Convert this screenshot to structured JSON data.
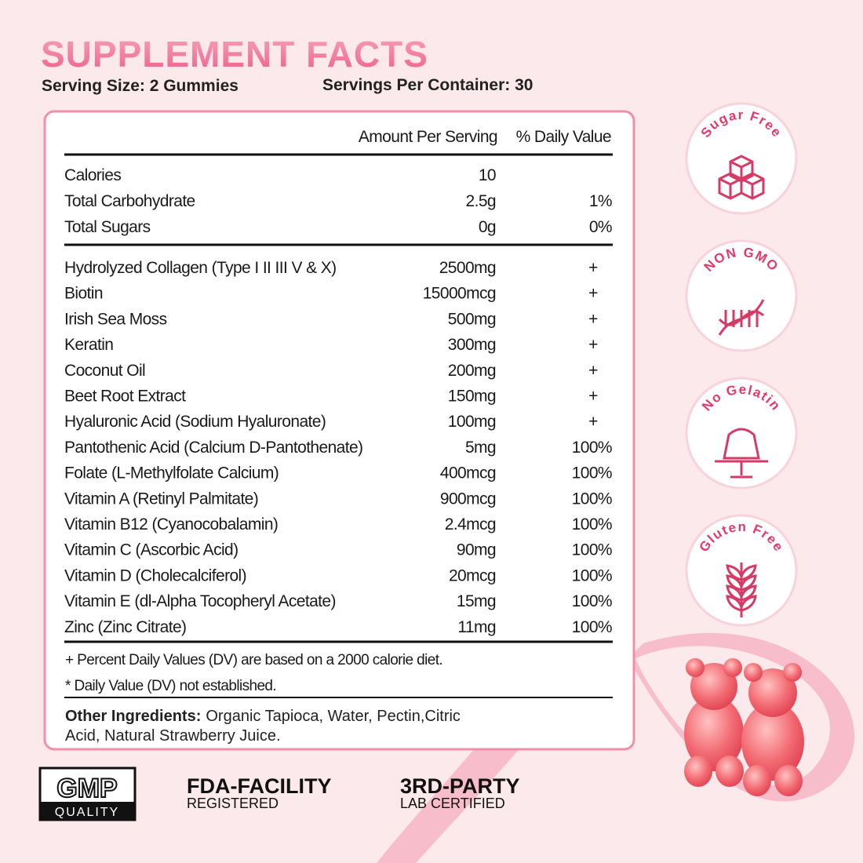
{
  "header": {
    "title": "SUPPLEMENT FACTS",
    "serving_size": "Serving Size: 2 Gummies",
    "servings_per_container": "Servings Per Container: 30"
  },
  "table": {
    "columns": [
      "Amount Per Serving",
      "% Daily Value"
    ],
    "macros": [
      [
        "Calories",
        "10",
        null
      ],
      [
        "Total Carbohydrate",
        "2.5g",
        "1%"
      ],
      [
        "Total Sugars",
        "0g",
        "0%"
      ]
    ],
    "ingredients": [
      [
        "Hydrolyzed Collagen (Type I II III V & X)",
        "2500mg",
        "+"
      ],
      [
        "Biotin",
        "15000mcg",
        "+"
      ],
      [
        "Irish Sea Moss",
        "500mg",
        "+"
      ],
      [
        "Keratin",
        "300mg",
        "+"
      ],
      [
        "Coconut Oil",
        "200mg",
        "+"
      ],
      [
        "Beet Root Extract",
        "150mg",
        "+"
      ],
      [
        "Hyaluronic Acid (Sodium Hyaluronate)",
        "100mg",
        "+"
      ],
      [
        "Pantothenic Acid (Calcium D-Pantothenate)",
        "5mg",
        "100%"
      ],
      [
        "Folate (L-Methylfolate Calcium)",
        "400mcg",
        "100%"
      ],
      [
        "Vitamin A (Retinyl Palmitate)",
        "900mcg",
        "100%"
      ],
      [
        "Vitamin B12 (Cyanocobalamin)",
        "2.4mcg",
        "100%"
      ],
      [
        "Vitamin C  (Ascorbic Acid)",
        "90mg",
        "100%"
      ],
      [
        "Vitamin D (Cholecalciferol)",
        "20mcg",
        "100%"
      ],
      [
        "Vitamin E (dl-Alpha Tocopheryl Acetate)",
        "15mg",
        "100%"
      ],
      [
        "Zinc (Zinc Citrate)",
        "11mg",
        "100%"
      ]
    ],
    "notes": [
      "+ Percent Daily Values (DV) are based on a  2000 calorie diet.",
      "* Daily Value (DV) not established."
    ],
    "other_ingredients": {
      "label": "Other Ingredients:",
      "lines": [
        "Organic Tapioca, Water, Pectin,Citric",
        "Acid, Natural Strawberry Juice."
      ]
    }
  },
  "badges": [
    "Sugar Free",
    "NON GMO",
    "No Gelatin",
    "Gluten Free"
  ],
  "footer": {
    "gmp": {
      "top": "GMP",
      "bottom": "QUALITY"
    },
    "certifications": [
      {
        "title": "FDA-FACILITY",
        "subtitle": "REGISTERED"
      },
      {
        "title": "3RD-PARTY",
        "subtitle": "LAB CERTIFIED"
      }
    ]
  }
}
